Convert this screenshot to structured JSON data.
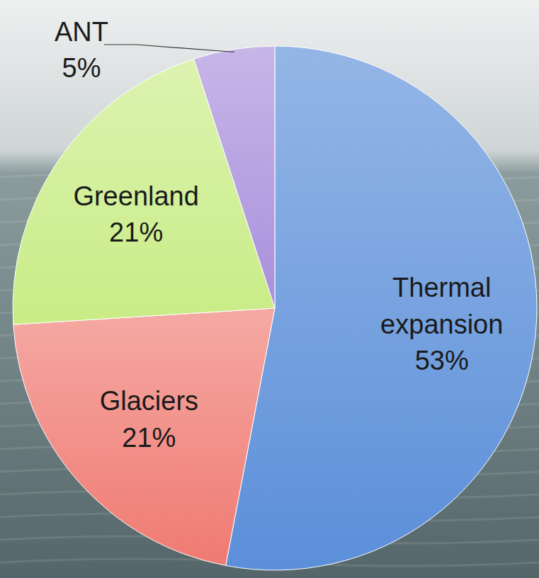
{
  "chart_data": {
    "type": "pie",
    "categories": [
      "Thermal expansion",
      "Glaciers",
      "Greenland",
      "ANT"
    ],
    "values": [
      53,
      21,
      21,
      5
    ],
    "value_labels": [
      "53%",
      "21%",
      "21%",
      "5%"
    ],
    "colors": [
      "#5b8fd9",
      "#ef7a72",
      "#c9ec86",
      "#a98fdc"
    ],
    "data_labels": true
  }
}
